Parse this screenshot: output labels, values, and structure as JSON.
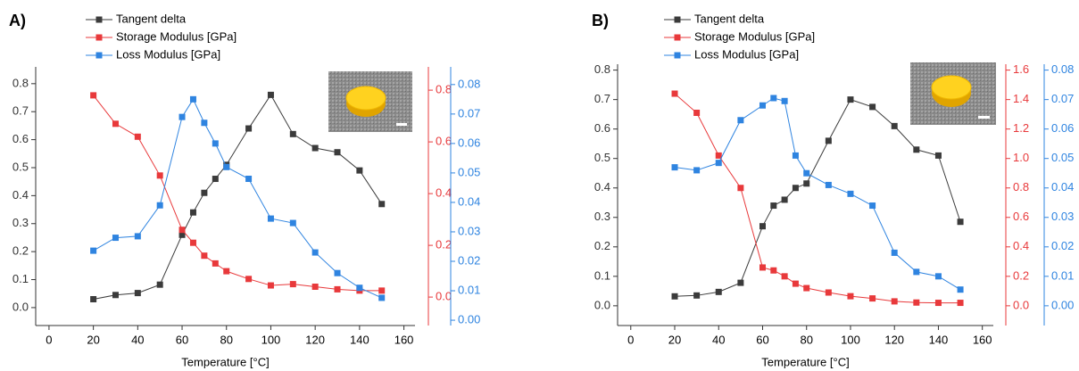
{
  "chart_data": [
    {
      "type": "line",
      "label": "A)",
      "xlabel": "Temperature [°C]",
      "legend": "top-left",
      "xlim": [
        -6,
        165
      ],
      "xticks": [
        0,
        20,
        40,
        60,
        80,
        100,
        120,
        140,
        160
      ],
      "ylim": [
        -0.064,
        0.86
      ],
      "yticks": [
        {
          "value": 0,
          "label": "0.0"
        },
        0.1,
        0.2,
        0.3,
        0.4,
        0.5,
        0.6,
        0.7,
        0.8
      ],
      "y2lim": [
        -0.11,
        0.89
      ],
      "y2ticks": [
        {
          "value": 0,
          "label": "0.0"
        },
        0.2,
        0.4,
        0.6,
        0.8
      ],
      "y3lim": [
        -0.0018,
        0.086
      ],
      "y3ticks": [
        {
          "value": 0,
          "label": "0.00"
        },
        0.01,
        0.02,
        0.03,
        0.04,
        0.05,
        0.06,
        0.07,
        0.08
      ],
      "x": [
        20,
        30,
        40,
        50,
        60,
        65,
        70,
        75,
        80,
        90,
        100,
        110,
        120,
        130,
        140,
        150
      ],
      "series": [
        {
          "name": "Tangent delta",
          "color": "#3b3b3b",
          "axis": "y",
          "values": [
            0.03,
            0.045,
            0.052,
            0.082,
            0.26,
            0.34,
            0.41,
            0.46,
            0.51,
            0.64,
            0.76,
            0.62,
            0.57,
            0.555,
            0.49,
            0.37
          ]
        },
        {
          "name": "Storage Modulus [GPa]",
          "color": "#e8393b",
          "axis": "y2",
          "values": [
            0.78,
            0.67,
            0.62,
            0.47,
            0.26,
            0.21,
            0.16,
            0.13,
            0.1,
            0.07,
            0.045,
            0.05,
            0.04,
            0.03,
            0.025,
            0.025
          ]
        },
        {
          "name": "Loss Modulus [GPa]",
          "color": "#2f84e0",
          "axis": "y3",
          "values": [
            0.0236,
            0.028,
            0.0285,
            0.039,
            0.069,
            0.075,
            0.067,
            0.06,
            0.052,
            0.048,
            0.0345,
            0.033,
            0.023,
            0.016,
            0.011,
            0.0076
          ]
        }
      ]
    },
    {
      "type": "line",
      "label": "B)",
      "xlabel": "Temperature [°C]",
      "legend": "top-left",
      "xlim": [
        -6,
        165
      ],
      "xticks": [
        0,
        20,
        40,
        60,
        80,
        100,
        120,
        140,
        160
      ],
      "ylim": [
        -0.067,
        0.82
      ],
      "yticks": [
        {
          "value": 0,
          "label": "0.0"
        },
        0.1,
        0.2,
        0.3,
        0.4,
        0.5,
        0.6,
        0.7,
        0.8
      ],
      "y2lim": [
        -0.134,
        1.64
      ],
      "y2ticks": [
        {
          "value": 0,
          "label": "0.0"
        },
        0.2,
        0.4,
        0.6,
        0.8,
        {
          "value": 1,
          "label": "1.0"
        },
        1.2,
        1.4,
        1.6
      ],
      "y3lim": [
        -0.0067,
        0.082
      ],
      "y3ticks": [
        {
          "value": 0,
          "label": "0.00"
        },
        0.01,
        0.02,
        0.03,
        0.04,
        0.05,
        0.06,
        0.07,
        0.08
      ],
      "x": [
        20,
        30,
        40,
        50,
        60,
        65,
        70,
        75,
        80,
        90,
        100,
        110,
        120,
        130,
        140,
        150
      ],
      "series": [
        {
          "name": "Tangent delta",
          "color": "#3b3b3b",
          "axis": "y",
          "values": [
            0.032,
            0.035,
            0.047,
            0.078,
            0.27,
            0.34,
            0.36,
            0.4,
            0.415,
            0.56,
            0.7,
            0.675,
            0.61,
            0.53,
            0.51,
            0.285
          ]
        },
        {
          "name": "Storage Modulus [GPa]",
          "color": "#e8393b",
          "axis": "y2",
          "values": [
            1.44,
            1.31,
            1.02,
            0.8,
            0.26,
            0.24,
            0.2,
            0.15,
            0.12,
            0.09,
            0.065,
            0.05,
            0.03,
            0.022,
            0.02,
            0.02
          ]
        },
        {
          "name": "Loss Modulus [GPa]",
          "color": "#2f84e0",
          "axis": "y3",
          "values": [
            0.047,
            0.046,
            0.0485,
            0.063,
            0.068,
            0.0705,
            0.0695,
            0.051,
            0.045,
            0.041,
            0.038,
            0.034,
            0.018,
            0.0115,
            0.01,
            0.0055
          ]
        }
      ]
    }
  ]
}
